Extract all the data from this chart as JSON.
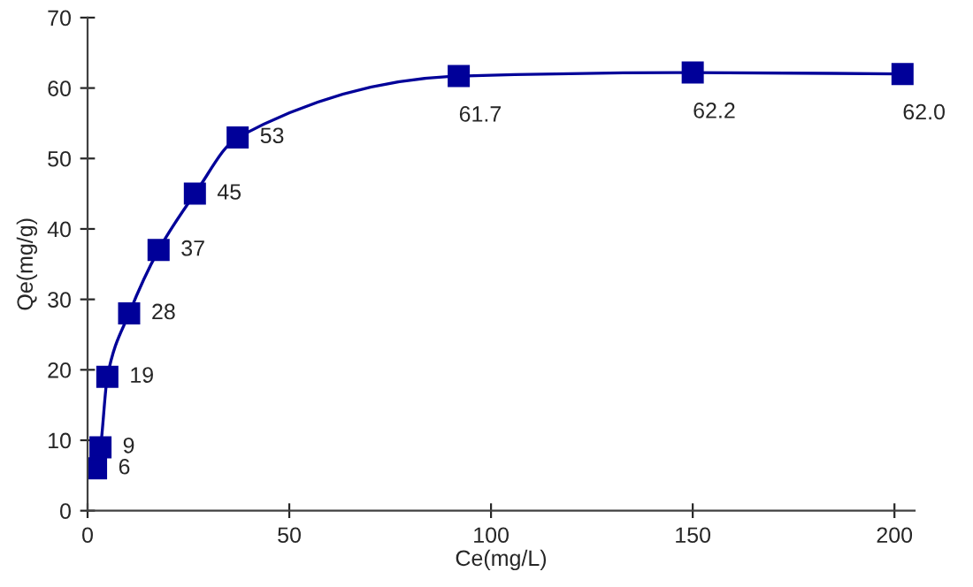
{
  "chart_data": {
    "type": "line",
    "xlabel": "Ce(mg/L)",
    "ylabel": "Qe(mg/g)",
    "x": [
      2.1,
      3.2,
      4.9,
      10.3,
      17.6,
      26.6,
      37.2,
      92,
      150,
      202
    ],
    "series": [
      {
        "color": "#000099",
        "values": [
          6,
          9,
          19,
          28,
          37,
          45,
          53,
          61.7,
          62.2,
          62.0
        ],
        "value_labels": [
          "6",
          "9",
          "19",
          "28",
          "37",
          "45",
          "53",
          "61.7",
          "62.2",
          "62.0"
        ]
      }
    ],
    "xlim": [
      0,
      205
    ],
    "xticks": [
      0,
      50,
      100,
      150,
      200
    ],
    "ylim": [
      0,
      70
    ],
    "yticks": [
      0,
      10,
      20,
      30,
      40,
      50,
      60,
      70
    ],
    "marker": "square",
    "line_style": "solid",
    "grid": false,
    "legend": false
  }
}
